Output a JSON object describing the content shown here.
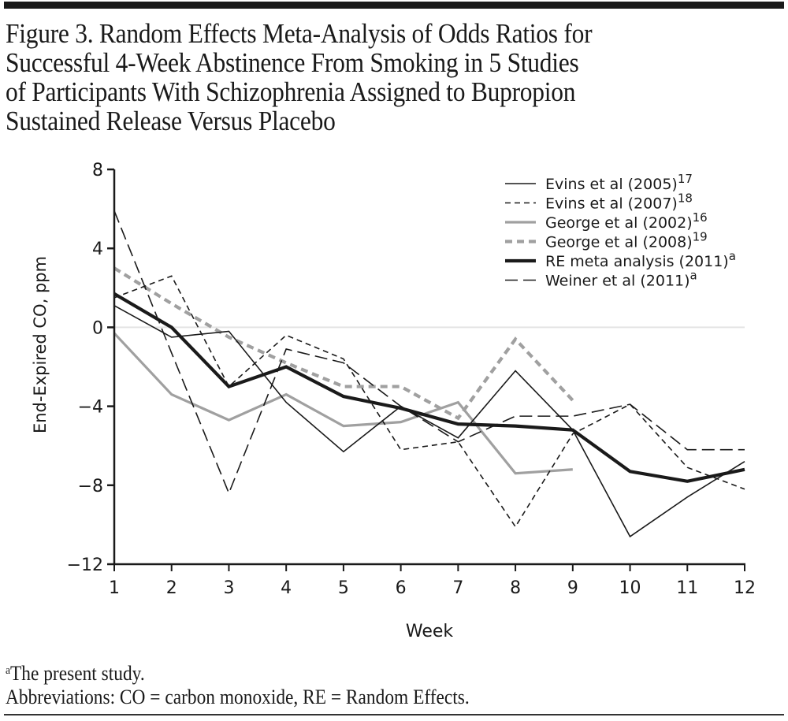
{
  "figure": {
    "title_lines": [
      "Figure 3. Random Effects Meta-Analysis of Odds Ratios for",
      "Successful 4-Week Abstinence From Smoking in 5 Studies",
      "of Participants With Schizophrenia Assigned to Bupropion",
      "Sustained Release Versus Placebo"
    ],
    "footnote_marker": "a",
    "footnote_text": "The present study.",
    "abbreviations": "Abbreviations: CO = carbon monoxide, RE = Random Effects."
  },
  "chart_data": {
    "type": "line",
    "title": "Figure 3. Random Effects Meta-Analysis of Odds Ratios for Successful 4-Week Abstinence From Smoking in 5 Studies of Participants With Schizophrenia Assigned to Bupropion Sustained Release Versus Placebo",
    "xlabel": "Week",
    "ylabel": "End-Expired CO, ppm",
    "xlim": [
      1,
      12
    ],
    "ylim": [
      -12,
      8
    ],
    "xticks": [
      1,
      2,
      3,
      4,
      5,
      6,
      7,
      8,
      9,
      10,
      11,
      12
    ],
    "yticks": [
      8,
      4,
      0,
      -4,
      -8,
      -12
    ],
    "ytick_labels": [
      "8",
      "4",
      "0",
      "−4",
      "−8",
      "−12"
    ],
    "reference_line_y": 0,
    "grid": false,
    "legend_position": "top-right",
    "series": [
      {
        "name": "Evins et al (2005)",
        "superscript": "17",
        "style": "thin-solid",
        "color": "#1a1a1a",
        "x": [
          1,
          2,
          3,
          4,
          5,
          6,
          7,
          8,
          9,
          10,
          11,
          12
        ],
        "values": [
          1.1,
          -0.5,
          -0.2,
          -3.8,
          -6.3,
          -4.0,
          -5.6,
          -2.2,
          -5.2,
          -10.6,
          -8.6,
          -6.8
        ]
      },
      {
        "name": "Evins et al (2007)",
        "superscript": "18",
        "style": "short-dash",
        "color": "#1a1a1a",
        "x": [
          1,
          2,
          3,
          4,
          5,
          6,
          7,
          8,
          9,
          10,
          11,
          12
        ],
        "values": [
          1.5,
          2.6,
          -3.0,
          -0.4,
          -1.6,
          -6.2,
          -5.8,
          -10.1,
          -5.4,
          -3.9,
          -7.1,
          -8.2
        ]
      },
      {
        "name": "George et al (2002)",
        "superscript": "16",
        "style": "gray-solid",
        "color": "#a0a0a0",
        "x": [
          1,
          2,
          3,
          4,
          5,
          6,
          7,
          8,
          9
        ],
        "values": [
          -0.3,
          -3.4,
          -4.7,
          -3.4,
          -5.0,
          -4.8,
          -3.8,
          -7.4,
          -7.2
        ]
      },
      {
        "name": "George et al (2008)",
        "superscript": "19",
        "style": "gray-dash",
        "color": "#a0a0a0",
        "x": [
          1,
          2,
          3,
          4,
          5,
          6,
          7,
          8,
          9
        ],
        "values": [
          3.0,
          1.2,
          -0.5,
          -1.8,
          -3.0,
          -3.0,
          -4.6,
          -0.6,
          -3.7
        ]
      },
      {
        "name": "RE meta analysis (2011)",
        "superscript": "a",
        "style": "thick-solid",
        "color": "#1a1a1a",
        "x": [
          1,
          2,
          3,
          4,
          5,
          6,
          7,
          8,
          9,
          10,
          11,
          12
        ],
        "values": [
          1.7,
          0.0,
          -3.0,
          -2.0,
          -3.5,
          -4.1,
          -4.9,
          -5.0,
          -5.2,
          -7.3,
          -7.8,
          -7.2
        ]
      },
      {
        "name": "Weiner et al (2011)",
        "superscript": "a",
        "style": "long-dash",
        "color": "#1a1a1a",
        "x": [
          1,
          2,
          3,
          4,
          5,
          6,
          7,
          8,
          9,
          10,
          11,
          12
        ],
        "values": [
          5.9,
          -1.3,
          -8.4,
          -1.1,
          -1.8,
          -4.0,
          -5.8,
          -4.5,
          -4.5,
          -3.9,
          -6.2,
          -6.2
        ]
      }
    ]
  }
}
